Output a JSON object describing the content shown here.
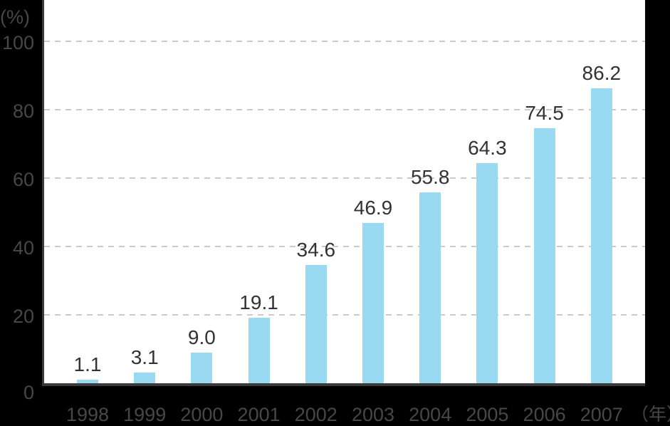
{
  "chart_data": {
    "type": "bar",
    "title": "",
    "categories": [
      "1998",
      "1999",
      "2000",
      "2001",
      "2002",
      "2003",
      "2004",
      "2005",
      "2006",
      "2007"
    ],
    "values": [
      1.1,
      3.1,
      9.0,
      19.1,
      34.6,
      46.9,
      55.8,
      64.3,
      74.5,
      86.2
    ],
    "value_labels": [
      "1.1",
      "3.1",
      "9.0",
      "19.1",
      "34.6",
      "46.9",
      "55.8",
      "64.3",
      "74.5",
      "86.2"
    ],
    "ylabel": "(%)",
    "xlabel": "（年）",
    "ylim": [
      0,
      100
    ],
    "y_ticks": [
      0,
      20,
      40,
      60,
      80,
      100
    ],
    "grid": "horizontal-dashed",
    "legend": "none",
    "colors": {
      "background": "#000000",
      "plot_background": "#ffffff",
      "bar": "#99d9f2",
      "gridline": "#cbcbcb",
      "axis_line": "#3a3a3a",
      "axis_text": "#474747",
      "value_text": "#333333"
    }
  }
}
